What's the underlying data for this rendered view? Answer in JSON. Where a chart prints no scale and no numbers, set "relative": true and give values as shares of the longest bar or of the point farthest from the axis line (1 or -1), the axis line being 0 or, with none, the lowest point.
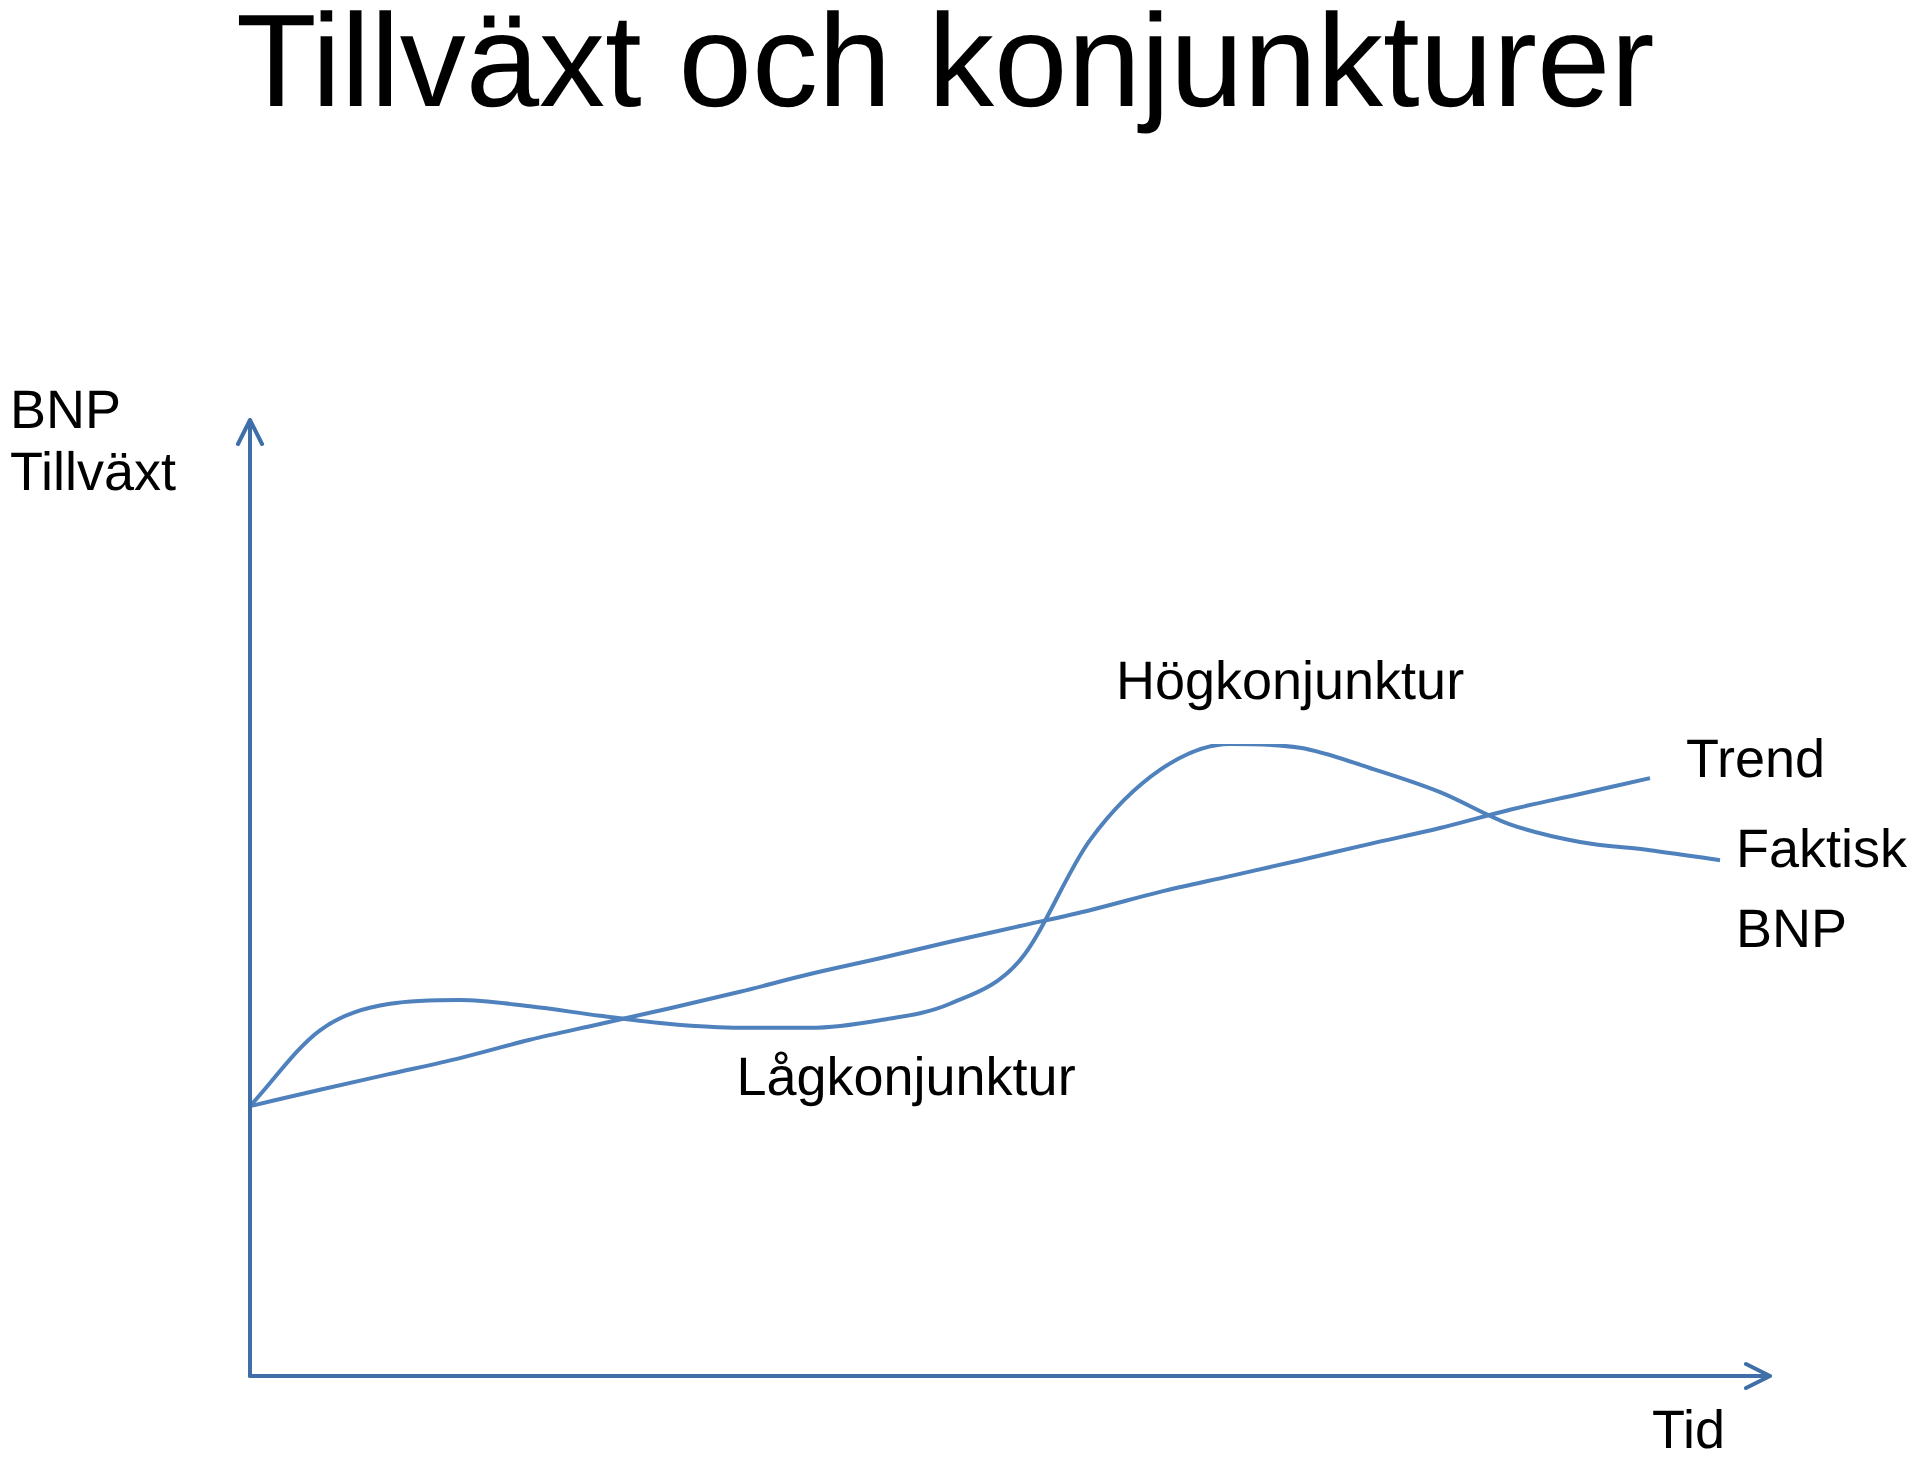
{
  "chart_data": {
    "type": "line",
    "title": "Tillväxt och konjunkturer",
    "xlabel": "Tid",
    "ylabel": "BNP Tillväxt",
    "relative": true,
    "legend": false,
    "marker": "none",
    "grid": false,
    "tick_labels": false,
    "annotations": [
      "Högkonjunktur",
      "Lågkonjunktur"
    ],
    "categories": [
      null,
      null,
      null,
      null,
      null,
      null,
      null,
      null,
      null,
      null,
      null,
      null,
      null,
      null,
      null,
      null,
      null,
      null,
      null,
      null,
      null,
      null
    ],
    "series": [
      {
        "name": "Trend",
        "color": "#4f81bd",
        "values": [
          0.427,
          0.453,
          0.478,
          0.503,
          0.532,
          0.557,
          0.582,
          0.608,
          0.636,
          0.661,
          0.687,
          0.712,
          0.737,
          0.766,
          0.791,
          0.816,
          0.842,
          0.867,
          0.896,
          0.921,
          0.946,
          null
        ]
      },
      {
        "name": "Faktisk BNP",
        "color": "#4f81bd",
        "values": [
          0.427,
          0.547,
          0.589,
          0.595,
          0.585,
          0.57,
          0.557,
          0.551,
          0.551,
          0.563,
          0.589,
          0.658,
          0.848,
          0.959,
          1,
          0.994,
          0.962,
          0.924,
          0.873,
          0.845,
          0.832,
          0.816
        ]
      }
    ]
  }
}
